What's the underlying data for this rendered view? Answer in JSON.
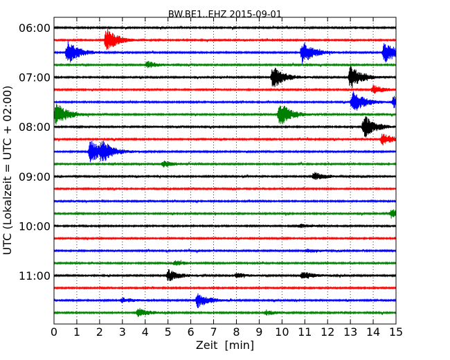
{
  "chart_data": {
    "type": "line",
    "title": "BW.BE1..EHZ 2015-09-01",
    "xlabel": "Zeit  [min]",
    "ylabel": "UTC (Lokalzeit = UTC + 02:00)",
    "xlim": [
      0,
      15
    ],
    "x_ticks": [
      0,
      1,
      2,
      3,
      4,
      5,
      6,
      7,
      8,
      9,
      10,
      11,
      12,
      13,
      14,
      15
    ],
    "x_tick_labels": [
      "0",
      "1",
      "2",
      "3",
      "4",
      "5",
      "6",
      "7",
      "8",
      "9",
      "10",
      "11",
      "12",
      "13",
      "14",
      "15"
    ],
    "grid": "vertical-dotted",
    "color_cycle": [
      "#000000",
      "#ff0000",
      "#0000ff",
      "#008000"
    ],
    "y_tick_labels": [
      {
        "label": "06:00",
        "row": 0
      },
      {
        "label": "07:00",
        "row": 4
      },
      {
        "label": "08:00",
        "row": 8
      },
      {
        "label": "09:00",
        "row": 12
      },
      {
        "label": "10:00",
        "row": 16
      },
      {
        "label": "11:00",
        "row": 20
      }
    ],
    "rows": [
      {
        "start": "06:00",
        "events": []
      },
      {
        "start": "06:15",
        "events": [
          {
            "t": 2.3,
            "amp": 1.0
          }
        ]
      },
      {
        "start": "06:30",
        "events": [
          {
            "t": 0.6,
            "amp": 1.0
          },
          {
            "t": 10.9,
            "amp": 1.0
          },
          {
            "t": 14.5,
            "amp": 1.0
          }
        ]
      },
      {
        "start": "06:45",
        "events": [
          {
            "t": 4.1,
            "amp": 0.3
          }
        ]
      },
      {
        "start": "07:00",
        "events": [
          {
            "t": 9.6,
            "amp": 1.0
          },
          {
            "t": 13.0,
            "amp": 1.0
          }
        ]
      },
      {
        "start": "07:15",
        "events": [
          {
            "t": 14.0,
            "amp": 0.35
          }
        ]
      },
      {
        "start": "07:30",
        "events": [
          {
            "t": 13.1,
            "amp": 1.0
          },
          {
            "t": 14.9,
            "amp": 0.5
          }
        ]
      },
      {
        "start": "07:45",
        "events": [
          {
            "t": 0.1,
            "amp": 1.0
          },
          {
            "t": 9.9,
            "amp": 1.0
          }
        ]
      },
      {
        "start": "08:00",
        "events": [
          {
            "t": 13.6,
            "amp": 1.0
          }
        ]
      },
      {
        "start": "08:15",
        "events": [
          {
            "t": 14.4,
            "amp": 0.5
          }
        ]
      },
      {
        "start": "08:30",
        "events": [
          {
            "t": 1.6,
            "amp": 1.0
          },
          {
            "t": 2.1,
            "amp": 0.7
          }
        ]
      },
      {
        "start": "08:45",
        "events": [
          {
            "t": 4.8,
            "amp": 0.25
          }
        ]
      },
      {
        "start": "09:00",
        "events": [
          {
            "t": 11.4,
            "amp": 0.35
          }
        ]
      },
      {
        "start": "09:15",
        "events": []
      },
      {
        "start": "09:30",
        "events": []
      },
      {
        "start": "09:45",
        "events": [
          {
            "t": 14.8,
            "amp": 0.4
          }
        ]
      },
      {
        "start": "10:00",
        "events": [
          {
            "t": 10.8,
            "amp": 0.15
          }
        ]
      },
      {
        "start": "10:15",
        "events": []
      },
      {
        "start": "10:30",
        "events": [
          {
            "t": 11.1,
            "amp": 0.15
          }
        ]
      },
      {
        "start": "10:45",
        "events": [
          {
            "t": 5.3,
            "amp": 0.2
          }
        ]
      },
      {
        "start": "11:00",
        "events": [
          {
            "t": 5.0,
            "amp": 0.5
          },
          {
            "t": 8.0,
            "amp": 0.2
          },
          {
            "t": 10.9,
            "amp": 0.35
          }
        ]
      },
      {
        "start": "11:15",
        "events": []
      },
      {
        "start": "11:30",
        "events": [
          {
            "t": 6.3,
            "amp": 0.6
          },
          {
            "t": 3.0,
            "amp": 0.2
          }
        ]
      },
      {
        "start": "11:45",
        "events": [
          {
            "t": 3.7,
            "amp": 0.35
          },
          {
            "t": 9.3,
            "amp": 0.2
          }
        ]
      }
    ]
  }
}
